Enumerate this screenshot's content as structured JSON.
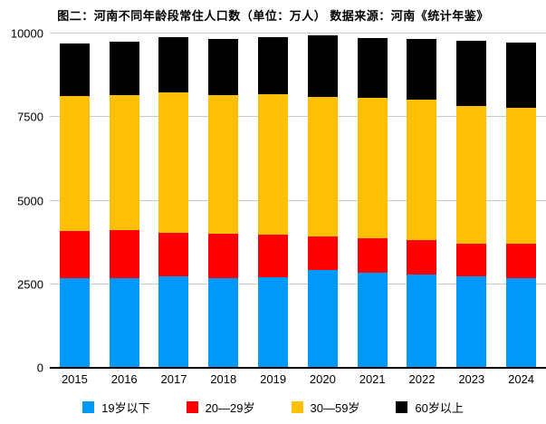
{
  "header": {
    "title": "图二：河南不同年龄段常住人口数（单位：万人） 数据来源：河南《统计年鉴》"
  },
  "chart_data": {
    "type": "bar",
    "stacked": true,
    "title": "图二：河南不同年龄段常住人口数（单位：万人） 数据来源：河南《统计年鉴》",
    "unit": "万人",
    "categories": [
      "2015",
      "2016",
      "2017",
      "2018",
      "2019",
      "2020",
      "2021",
      "2022",
      "2023",
      "2024"
    ],
    "series": [
      {
        "name": "19岁以下",
        "color": "#0099fa",
        "values": [
          2670,
          2690,
          2730,
          2690,
          2710,
          2930,
          2840,
          2800,
          2730,
          2670
        ]
      },
      {
        "name": "20—29岁",
        "color": "#ff0000",
        "values": [
          1420,
          1420,
          1310,
          1320,
          1270,
          1000,
          1030,
          1030,
          990,
          1030
        ]
      },
      {
        "name": "30—59岁",
        "color": "#ffc005",
        "values": [
          4050,
          4040,
          4190,
          4160,
          4200,
          4170,
          4200,
          4180,
          4110,
          4080
        ]
      },
      {
        "name": "60岁以上",
        "color": "#000000",
        "values": [
          1550,
          1620,
          1650,
          1670,
          1720,
          1860,
          1790,
          1840,
          1950,
          1960
        ]
      }
    ],
    "totals": [
      9690,
      9770,
      9880,
      9840,
      9900,
      9960,
      9860,
      9850,
      9780,
      9740
    ],
    "xlabel": "",
    "ylabel": "",
    "ylim": [
      0,
      10000
    ],
    "y_ticks": [
      0,
      2500,
      5000,
      7500,
      10000
    ],
    "grid": true,
    "legend_position": "bottom",
    "colors": {
      "grid_line": "#c9c9c9",
      "axis_line": "#000000",
      "text": "#000000",
      "background": "#ffffff"
    }
  }
}
